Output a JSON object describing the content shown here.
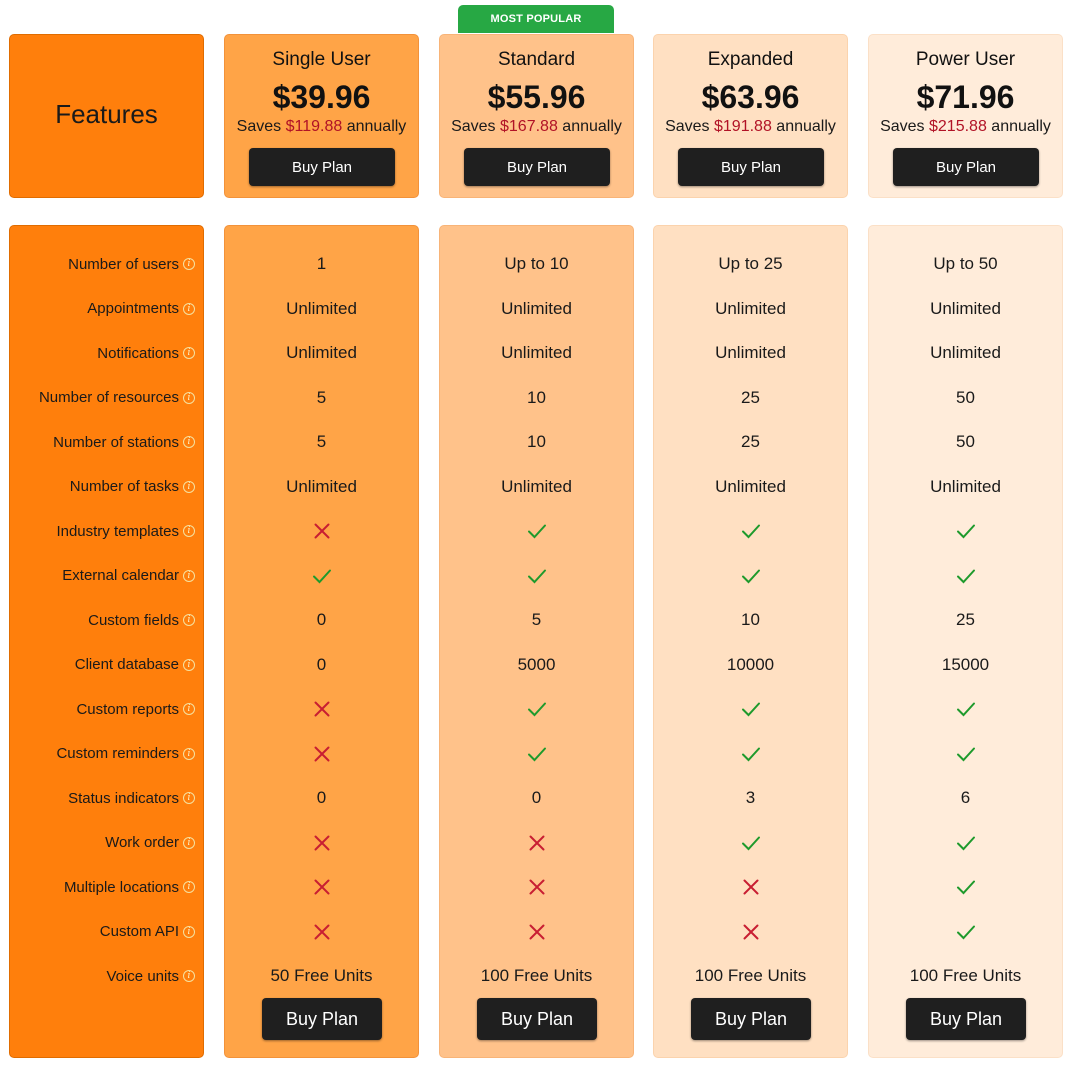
{
  "badge": "MOST POPULAR",
  "features_title": "Features",
  "colors": {
    "check": "#1e9a2c",
    "cross": "#c81e32",
    "savings": "#b11226",
    "badge": "#27a844",
    "button": "#1f1f1f"
  },
  "plans": [
    {
      "name": "Single User",
      "price": "$39.96",
      "saves_prefix": "Saves",
      "saves_amount": "$119.88",
      "saves_suffix": "annually",
      "buy_label": "Buy Plan"
    },
    {
      "name": "Standard",
      "price": "$55.96",
      "saves_prefix": "Saves",
      "saves_amount": "$167.88",
      "saves_suffix": "annually",
      "buy_label": "Buy Plan"
    },
    {
      "name": "Expanded",
      "price": "$63.96",
      "saves_prefix": "Saves",
      "saves_amount": "$191.88",
      "saves_suffix": "annually",
      "buy_label": "Buy Plan"
    },
    {
      "name": "Power User",
      "price": "$71.96",
      "saves_prefix": "Saves",
      "saves_amount": "$215.88",
      "saves_suffix": "annually",
      "buy_label": "Buy Plan"
    }
  ],
  "features": [
    {
      "label": "Number of users",
      "values": [
        "1",
        "Up to 10",
        "Up to 25",
        "Up to 50"
      ]
    },
    {
      "label": "Appointments",
      "values": [
        "Unlimited",
        "Unlimited",
        "Unlimited",
        "Unlimited"
      ]
    },
    {
      "label": "Notifications",
      "values": [
        "Unlimited",
        "Unlimited",
        "Unlimited",
        "Unlimited"
      ]
    },
    {
      "label": "Number of resources",
      "values": [
        "5",
        "10",
        "25",
        "50"
      ]
    },
    {
      "label": "Number of stations",
      "values": [
        "5",
        "10",
        "25",
        "50"
      ]
    },
    {
      "label": "Number of tasks",
      "values": [
        "Unlimited",
        "Unlimited",
        "Unlimited",
        "Unlimited"
      ]
    },
    {
      "label": "Industry templates",
      "values": [
        false,
        true,
        true,
        true
      ]
    },
    {
      "label": "External calendar",
      "values": [
        true,
        true,
        true,
        true
      ]
    },
    {
      "label": "Custom fields",
      "values": [
        "0",
        "5",
        "10",
        "25"
      ]
    },
    {
      "label": "Client database",
      "values": [
        "0",
        "5000",
        "10000",
        "15000"
      ]
    },
    {
      "label": "Custom reports",
      "values": [
        false,
        true,
        true,
        true
      ]
    },
    {
      "label": "Custom reminders",
      "values": [
        false,
        true,
        true,
        true
      ]
    },
    {
      "label": "Status indicators",
      "values": [
        "0",
        "0",
        "3",
        "6"
      ]
    },
    {
      "label": "Work order",
      "values": [
        false,
        false,
        true,
        true
      ]
    },
    {
      "label": "Multiple locations",
      "values": [
        false,
        false,
        false,
        true
      ]
    },
    {
      "label": "Custom API",
      "values": [
        false,
        false,
        false,
        true
      ]
    },
    {
      "label": "Voice units",
      "values": [
        "50 Free Units",
        "100 Free Units",
        "100 Free Units",
        "100 Free Units"
      ]
    }
  ]
}
